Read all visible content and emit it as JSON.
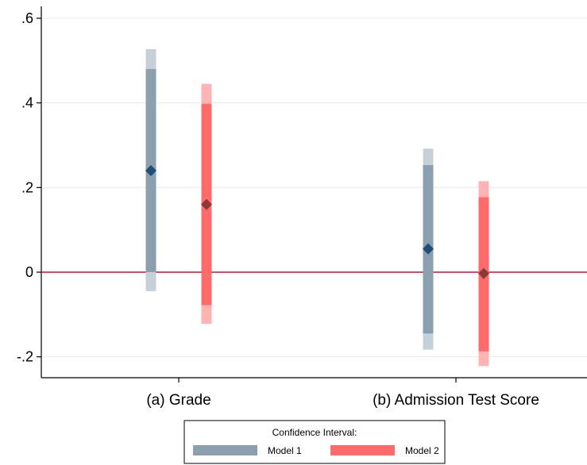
{
  "chart_data": {
    "type": "coefficient_plot",
    "title": "",
    "xlabel": "",
    "ylabel": "",
    "ylim": [
      -0.25,
      0.65
    ],
    "y_ticks": [
      {
        "value": -0.2,
        "label": "-.2"
      },
      {
        "value": 0,
        "label": "0"
      },
      {
        "value": 0.2,
        "label": ".2"
      },
      {
        "value": 0.4,
        "label": ".4"
      },
      {
        "value": 0.6,
        "label": ".6"
      }
    ],
    "grid": true,
    "reference_line": {
      "y": 0,
      "color": "#c8102e"
    },
    "categories": [
      "(a) Grade",
      "(b) Admission Test Score"
    ],
    "series": [
      {
        "name": "Model 1",
        "color_inner": "#8c9faf",
        "color_outer": "#c5d0d8",
        "marker_color": "#1f4e79",
        "points": [
          {
            "category": "(a) Grade",
            "estimate": 0.24,
            "ci_inner": [
              0.0,
              0.48
            ],
            "ci_outer": [
              -0.045,
              0.527
            ]
          },
          {
            "category": "(b) Admission Test Score",
            "estimate": 0.055,
            "ci_inner": [
              -0.145,
              0.253
            ],
            "ci_outer": [
              -0.183,
              0.292
            ]
          }
        ]
      },
      {
        "name": "Model 2",
        "color_inner": "#ff6b6b",
        "color_outer": "#ffb3b3",
        "marker_color": "#8b3a3a",
        "points": [
          {
            "category": "(a) Grade",
            "estimate": 0.16,
            "ci_inner": [
              -0.078,
              0.398
            ],
            "ci_outer": [
              -0.122,
              0.445
            ]
          },
          {
            "category": "(b) Admission Test Score",
            "estimate": -0.003,
            "ci_inner": [
              -0.187,
              0.177
            ],
            "ci_outer": [
              -0.222,
              0.215
            ]
          }
        ]
      }
    ],
    "legend": {
      "title": "Confidence Interval:",
      "position": "bottom-center",
      "entries": [
        "Model 1",
        "Model 2"
      ]
    }
  }
}
